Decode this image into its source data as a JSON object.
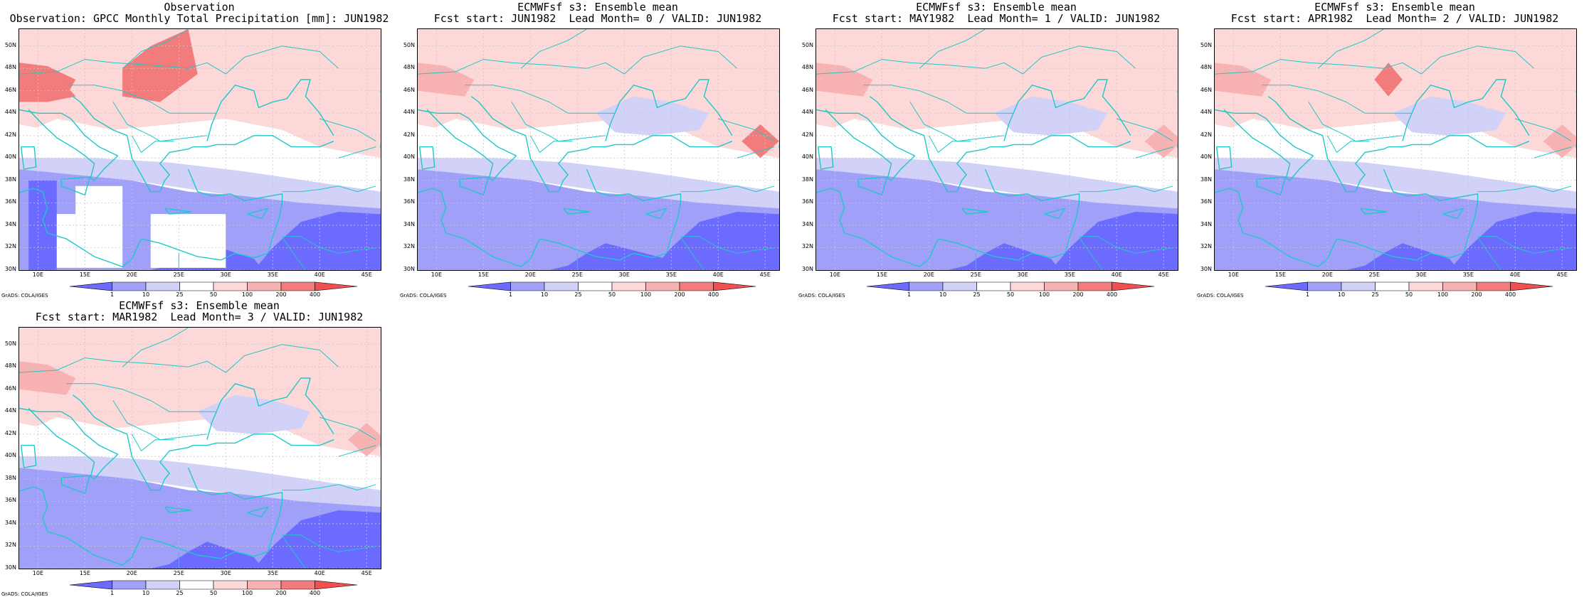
{
  "panels": [
    {
      "id": "obs",
      "title_line1": "Observation",
      "title_line2": "Observation: GPCC Monthly Total Precipitation [mm]: JUN1982",
      "variant": 0
    },
    {
      "id": "lead0",
      "title_line1": "ECMWFsf s3: Ensemble mean",
      "title_line2": "Fcst start: JUN1982  Lead Month= 0 / VALID: JUN1982",
      "variant": 1
    },
    {
      "id": "lead1",
      "title_line1": "ECMWFsf s3: Ensemble mean",
      "title_line2": "Fcst start: MAY1982  Lead Month= 1 / VALID: JUN1982",
      "variant": 2
    },
    {
      "id": "lead2",
      "title_line1": "ECMWFsf s3: Ensemble mean",
      "title_line2": "Fcst start: APR1982  Lead Month= 2 / VALID: JUN1982",
      "variant": 3
    },
    {
      "id": "lead3",
      "title_line1": "ECMWFsf s3: Ensemble mean",
      "title_line2": "Fcst start: MAR1982  Lead Month= 3 / VALID: JUN1982",
      "variant": 4
    }
  ],
  "map": {
    "lat_labels": [
      "50N",
      "48N",
      "46N",
      "44N",
      "42N",
      "40N",
      "38N",
      "36N",
      "34N",
      "32N",
      "30N"
    ],
    "lon_labels": [
      "10E",
      "15E",
      "20E",
      "25E",
      "30E",
      "35E",
      "40E",
      "45E"
    ],
    "lon_range": [
      8,
      46.5
    ],
    "lat_range": [
      30,
      51.5
    ],
    "coastline_color": "#1ec8c8",
    "grid_color": "#c8c8c8"
  },
  "colorbar": {
    "levels": [
      "1",
      "10",
      "25",
      "50",
      "100",
      "200",
      "400"
    ],
    "colors": [
      "#6b6bff",
      "#a0a0f8",
      "#d2d2f8",
      "#ffffff",
      "#fcd8d8",
      "#f8b2b2",
      "#f27c7c",
      "#f25050"
    ]
  },
  "footer": {
    "text": "GrADS: COLA/IGES"
  }
}
